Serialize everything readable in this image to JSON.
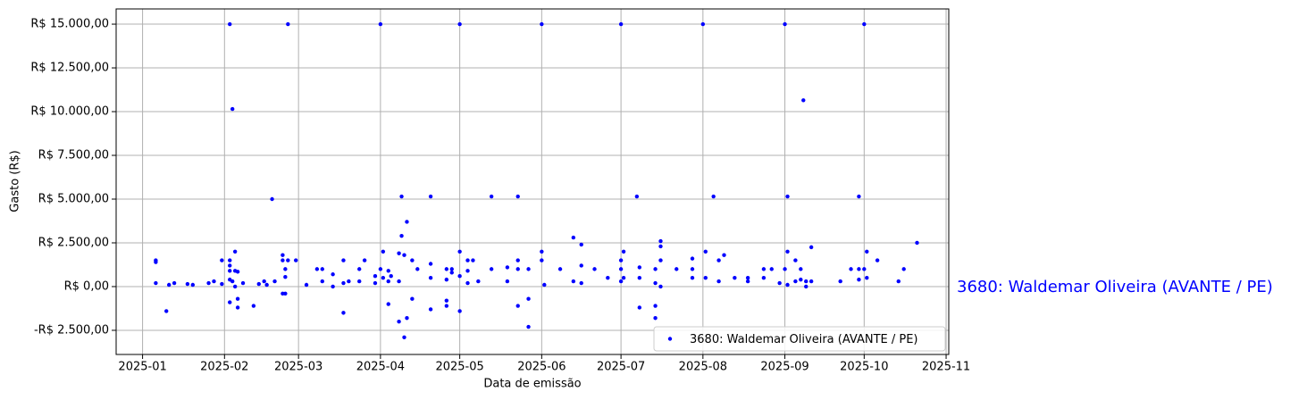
{
  "chart_data": {
    "type": "scatter",
    "xlabel": "Data de emissão",
    "ylabel": "Gasto (R$)",
    "annotation": "3680: Waldemar Oliveira (AVANTE / PE)",
    "grid": true,
    "legend": "lower right",
    "xlim": [
      "2024-12-22",
      "2025-11-02"
    ],
    "xticks": [
      {
        "value": "2025-01-01",
        "label": "2025-01"
      },
      {
        "value": "2025-02-01",
        "label": "2025-02"
      },
      {
        "value": "2025-03-01",
        "label": "2025-03"
      },
      {
        "value": "2025-04-01",
        "label": "2025-04"
      },
      {
        "value": "2025-05-01",
        "label": "2025-05"
      },
      {
        "value": "2025-06-01",
        "label": "2025-06"
      },
      {
        "value": "2025-07-01",
        "label": "2025-07"
      },
      {
        "value": "2025-08-01",
        "label": "2025-08"
      },
      {
        "value": "2025-09-01",
        "label": "2025-09"
      },
      {
        "value": "2025-10-01",
        "label": "2025-10"
      },
      {
        "value": "2025-11-01",
        "label": "2025-11"
      }
    ],
    "ylim": [
      -3880,
      15870
    ],
    "yticks": [
      {
        "value": -2500,
        "label": "-R$ 2.500,00"
      },
      {
        "value": 0,
        "label": "R$ 0,00"
      },
      {
        "value": 2500,
        "label": "R$ 2.500,00"
      },
      {
        "value": 5000,
        "label": "R$ 5.000,00"
      },
      {
        "value": 7500,
        "label": "R$ 7.500,00"
      },
      {
        "value": 10000,
        "label": "R$ 10.000,00"
      },
      {
        "value": 12500,
        "label": "R$ 12.500,00"
      },
      {
        "value": 15000,
        "label": "R$ 15.000,00"
      }
    ],
    "series": [
      {
        "name": "3680: Waldemar Oliveira (AVANTE / PE)",
        "color": "blue",
        "x": [
          "2025-01-06",
          "2025-01-06",
          "2025-01-06",
          "2025-01-10",
          "2025-01-11",
          "2025-01-13",
          "2025-01-18",
          "2025-01-20",
          "2025-01-26",
          "2025-01-28",
          "2025-01-31",
          "2025-01-31",
          "2025-02-03",
          "2025-02-03",
          "2025-02-03",
          "2025-02-03",
          "2025-02-03",
          "2025-02-03",
          "2025-02-04",
          "2025-02-04",
          "2025-02-05",
          "2025-02-05",
          "2025-02-05",
          "2025-02-06",
          "2025-02-06",
          "2025-02-06",
          "2025-02-08",
          "2025-02-12",
          "2025-02-14",
          "2025-02-16",
          "2025-02-17",
          "2025-02-19",
          "2025-02-20",
          "2025-02-23",
          "2025-02-23",
          "2025-02-23",
          "2025-02-24",
          "2025-02-24",
          "2025-02-24",
          "2025-02-25",
          "2025-02-25",
          "2025-02-28",
          "2025-03-04",
          "2025-03-08",
          "2025-03-10",
          "2025-03-10",
          "2025-03-14",
          "2025-03-14",
          "2025-03-18",
          "2025-03-18",
          "2025-03-18",
          "2025-03-20",
          "2025-03-24",
          "2025-03-24",
          "2025-03-26",
          "2025-03-30",
          "2025-03-30",
          "2025-04-01",
          "2025-04-01",
          "2025-04-02",
          "2025-04-02",
          "2025-04-04",
          "2025-04-04",
          "2025-04-04",
          "2025-04-05",
          "2025-04-08",
          "2025-04-08",
          "2025-04-08",
          "2025-04-09",
          "2025-04-09",
          "2025-04-10",
          "2025-04-10",
          "2025-04-11",
          "2025-04-11",
          "2025-04-13",
          "2025-04-13",
          "2025-04-15",
          "2025-04-20",
          "2025-04-20",
          "2025-04-20",
          "2025-04-20",
          "2025-04-26",
          "2025-04-26",
          "2025-04-26",
          "2025-04-26",
          "2025-04-28",
          "2025-04-28",
          "2025-05-01",
          "2025-05-01",
          "2025-05-01",
          "2025-05-01",
          "2025-05-04",
          "2025-05-04",
          "2025-05-04",
          "2025-05-06",
          "2025-05-08",
          "2025-05-13",
          "2025-05-13",
          "2025-05-19",
          "2025-05-19",
          "2025-05-23",
          "2025-05-23",
          "2025-05-23",
          "2025-05-23",
          "2025-05-27",
          "2025-05-27",
          "2025-05-27",
          "2025-06-01",
          "2025-06-01",
          "2025-06-01",
          "2025-06-02",
          "2025-06-08",
          "2025-06-13",
          "2025-06-13",
          "2025-06-16",
          "2025-06-16",
          "2025-06-16",
          "2025-06-21",
          "2025-06-26",
          "2025-07-01",
          "2025-07-01",
          "2025-07-01",
          "2025-07-01",
          "2025-07-02",
          "2025-07-02",
          "2025-07-07",
          "2025-07-08",
          "2025-07-08",
          "2025-07-08",
          "2025-07-14",
          "2025-07-14",
          "2025-07-14",
          "2025-07-14",
          "2025-07-16",
          "2025-07-16",
          "2025-07-16",
          "2025-07-16",
          "2025-07-22",
          "2025-07-28",
          "2025-07-28",
          "2025-07-28",
          "2025-08-01",
          "2025-08-02",
          "2025-08-02",
          "2025-08-05",
          "2025-08-07",
          "2025-08-07",
          "2025-08-09",
          "2025-08-13",
          "2025-08-18",
          "2025-08-18",
          "2025-08-24",
          "2025-08-24",
          "2025-08-27",
          "2025-08-30",
          "2025-09-01",
          "2025-09-01",
          "2025-09-02",
          "2025-09-02",
          "2025-09-02",
          "2025-09-05",
          "2025-09-05",
          "2025-09-07",
          "2025-09-07",
          "2025-09-08",
          "2025-09-09",
          "2025-09-09",
          "2025-09-11",
          "2025-09-11",
          "2025-09-22",
          "2025-09-26",
          "2025-09-29",
          "2025-09-29",
          "2025-09-29",
          "2025-10-01",
          "2025-10-01",
          "2025-10-02",
          "2025-10-02",
          "2025-10-06",
          "2025-10-14",
          "2025-10-16",
          "2025-10-21"
        ],
        "values": [
          1500,
          1400,
          200,
          -1400,
          100,
          200,
          150,
          100,
          200,
          300,
          150,
          1500,
          15000,
          1500,
          1200,
          900,
          400,
          -900,
          10150,
          300,
          2000,
          900,
          0,
          -1200,
          -700,
          850,
          200,
          -1100,
          150,
          300,
          100,
          5000,
          300,
          1800,
          1500,
          -400,
          -400,
          1000,
          550,
          15000,
          1500,
          1500,
          100,
          1000,
          1000,
          300,
          700,
          0,
          1500,
          -1500,
          200,
          300,
          1000,
          300,
          1500,
          600,
          200,
          15000,
          1000,
          2000,
          500,
          900,
          -1000,
          300,
          600,
          -2000,
          1900,
          300,
          2900,
          5150,
          -2900,
          1800,
          -1800,
          3700,
          -700,
          1500,
          1000,
          1300,
          -1300,
          5150,
          500,
          1000,
          400,
          -800,
          -1100,
          800,
          1000,
          15000,
          2000,
          -1400,
          600,
          1500,
          200,
          900,
          1500,
          300,
          5150,
          1000,
          1100,
          300,
          5150,
          1500,
          1000,
          -1100,
          -2300,
          -700,
          1000,
          15000,
          1500,
          2000,
          100,
          1000,
          2800,
          300,
          2400,
          1200,
          200,
          1000,
          500,
          15000,
          1500,
          1000,
          300,
          2000,
          500,
          5150,
          -1200,
          1100,
          500,
          1000,
          -1100,
          -1800,
          200,
          2600,
          2300,
          1500,
          0,
          1000,
          1600,
          500,
          1000,
          15000,
          2000,
          500,
          5150,
          1500,
          300,
          1800,
          500,
          500,
          300,
          1000,
          500,
          1000,
          200,
          15000,
          1000,
          5150,
          2000,
          100,
          1500,
          300,
          1000,
          400,
          10650,
          300,
          0,
          2250,
          300,
          300,
          1000,
          5150,
          1000,
          400,
          15000,
          1000,
          2000,
          500,
          1500,
          300,
          1000,
          2500
        ]
      }
    ]
  }
}
